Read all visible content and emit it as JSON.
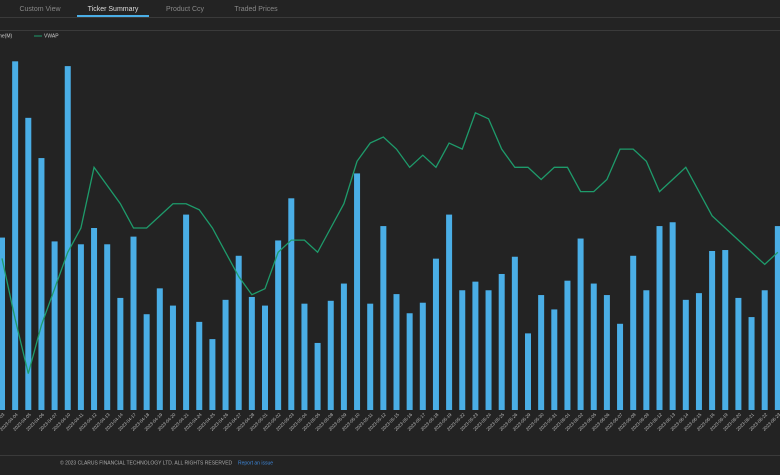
{
  "tabs": [
    "Custom View",
    "Ticker Summary",
    "Product Ccy",
    "Traded Prices"
  ],
  "active_tab": 1,
  "chart_data": {
    "type": "bar",
    "categories": [
      "2023-04-03",
      "2023-04-04",
      "2023-04-05",
      "2023-04-06",
      "2023-04-07",
      "2023-04-10",
      "2023-04-11",
      "2023-04-12",
      "2023-04-13",
      "2023-04-14",
      "2023-04-17",
      "2023-04-18",
      "2023-04-19",
      "2023-04-20",
      "2023-04-21",
      "2023-04-24",
      "2023-04-25",
      "2023-04-26",
      "2023-04-27",
      "2023-04-28",
      "2023-05-01",
      "2023-05-02",
      "2023-05-03",
      "2023-05-04",
      "2023-05-05",
      "2023-05-08",
      "2023-05-09",
      "2023-05-10",
      "2023-05-11",
      "2023-05-12",
      "2023-05-15",
      "2023-05-16",
      "2023-05-17",
      "2023-05-18",
      "2023-05-19",
      "2023-05-22",
      "2023-05-23",
      "2023-05-24",
      "2023-05-25",
      "2023-05-26",
      "2023-05-29",
      "2023-05-30",
      "2023-05-31",
      "2023-06-01",
      "2023-06-02",
      "2023-06-05",
      "2023-06-06",
      "2023-06-07",
      "2023-06-08",
      "2023-06-09",
      "2023-06-12",
      "2023-06-13",
      "2023-06-14",
      "2023-06-15",
      "2023-06-16",
      "2023-06-19",
      "2023-06-20",
      "2023-06-21",
      "2023-06-22",
      "2023-06-23"
    ],
    "series": [
      {
        "name": "Volume(M)",
        "type": "bar",
        "color": "#4aaee6",
        "values": [
          180,
          364,
          305,
          263,
          176,
          359,
          173,
          190,
          173,
          117,
          181,
          100,
          127,
          109,
          204,
          92,
          74,
          115,
          161,
          118,
          109,
          177,
          221,
          111,
          70,
          114,
          132,
          247,
          111,
          192,
          121,
          101,
          112,
          158,
          204,
          125,
          134,
          125,
          142,
          160,
          80,
          120,
          105,
          135,
          179,
          132,
          120,
          90,
          161,
          125,
          192,
          196,
          115,
          122,
          166,
          167,
          117,
          97,
          125,
          192
        ]
      },
      {
        "name": "VWAP",
        "type": "line",
        "axis": "y2",
        "color": "#1e9b6b",
        "values": [
          115,
          105,
          96,
          104,
          110,
          116,
          120,
          130,
          127,
          124,
          120,
          120,
          122,
          124,
          124,
          123,
          120,
          116,
          112,
          109,
          110,
          116,
          118,
          118,
          116,
          120,
          124,
          131,
          134,
          135,
          133,
          130,
          132,
          130,
          134,
          133,
          139,
          138,
          133,
          130,
          130,
          128,
          130,
          130,
          126,
          126,
          128,
          133,
          133,
          131,
          126,
          128,
          130,
          126,
          122,
          120,
          118,
          116,
          114,
          116
        ]
      }
    ],
    "ylim": [
      0,
      380
    ],
    "y2lim": [
      90,
      150
    ]
  },
  "footer": {
    "copyright": "© 2023 CLARUS FINANCIAL TECHNOLOGY LTD. ALL RIGHTS RESERVED",
    "link": "Report an issue"
  }
}
